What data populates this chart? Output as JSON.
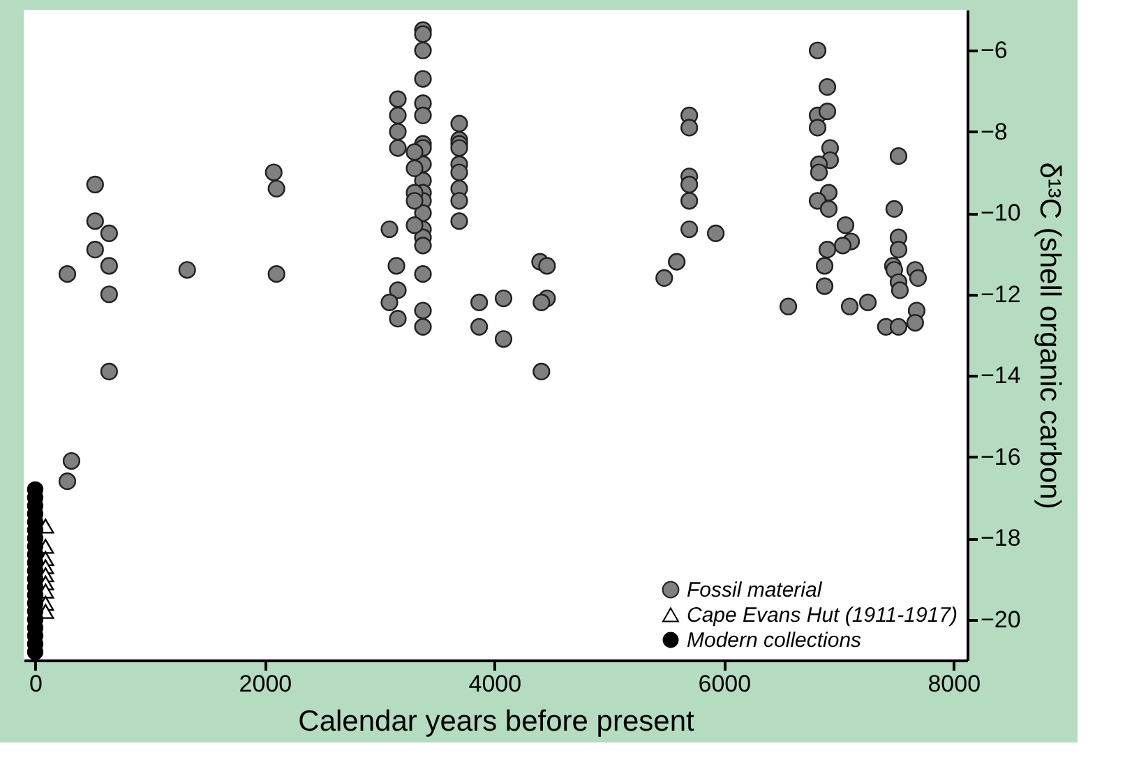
{
  "chart_data": {
    "type": "scatter",
    "xlabel": "Calendar years before present",
    "ylabel": "δ¹³C (shell organic carbon)",
    "xlim": [
      -100,
      8120
    ],
    "ylim": [
      -21,
      -5
    ],
    "xticks": [
      0,
      2000,
      4000,
      6000,
      8000
    ],
    "yticks": [
      -6,
      -8,
      -10,
      -12,
      -14,
      -16,
      -18,
      -20
    ],
    "grid": false,
    "legend": "bottom right",
    "series": [
      {
        "name": "Fossil material",
        "color": "#808080",
        "marker": "circle",
        "x": [
          280,
          522,
          522,
          644,
          522,
          644,
          644,
          644,
          1324,
          2078,
          2102,
          2102,
          3086,
          3159,
          3159,
          3159,
          3159,
          3147,
          3159,
          3086,
          3159,
          3378,
          3378,
          3378,
          3378,
          3378,
          3378,
          3378,
          3378,
          3378,
          3378,
          3378,
          3378,
          3378,
          3378,
          3378,
          3378,
          3378,
          3378,
          3378,
          3305,
          3305,
          3305,
          3305,
          3305,
          3694,
          3694,
          3694,
          3694,
          3694,
          3694,
          3694,
          3694,
          3694,
          3868,
          3868,
          4080,
          4080,
          4398,
          4459,
          4459,
          4410,
          4410,
          5480,
          5589,
          5698,
          5698,
          5698,
          5698,
          5698,
          5698,
          5929,
          6561,
          6816,
          6901,
          6816,
          6901,
          6816,
          6925,
          6925,
          6828,
          6828,
          6913,
          6816,
          6913,
          7059,
          7108,
          7035,
          6901,
          6877,
          6877,
          7096,
          7254,
          7521,
          7484,
          7521,
          7521,
          7472,
          7484,
          7521,
          7533,
          7666,
          7691,
          7411,
          7521,
          7679,
          7666,
          316,
          280
        ],
        "values": [
          -11.5,
          -9.3,
          -10.2,
          -10.5,
          -10.9,
          -11.3,
          -12.0,
          -13.9,
          -11.4,
          -9.0,
          -9.4,
          -11.5,
          -10.4,
          -7.2,
          -7.6,
          -8.0,
          -8.4,
          -11.3,
          -11.9,
          -12.2,
          -12.6,
          -5.5,
          -5.6,
          -6.0,
          -6.7,
          -7.3,
          -7.6,
          -8.3,
          -8.4,
          -8.8,
          -9.2,
          -9.5,
          -9.7,
          -10.0,
          -10.4,
          -10.6,
          -10.8,
          -11.5,
          -12.4,
          -12.8,
          -8.5,
          -8.9,
          -9.5,
          -9.7,
          -10.3,
          -7.8,
          -8.2,
          -8.3,
          -8.4,
          -8.8,
          -9.0,
          -9.4,
          -9.7,
          -10.2,
          -12.2,
          -12.8,
          -12.1,
          -13.1,
          -11.2,
          -11.3,
          -12.1,
          -12.2,
          -13.9,
          -11.6,
          -11.2,
          -7.6,
          -7.9,
          -9.1,
          -9.3,
          -9.7,
          -10.4,
          -10.5,
          -12.3,
          -6.0,
          -6.9,
          -7.6,
          -7.5,
          -7.9,
          -8.4,
          -8.7,
          -8.8,
          -9.0,
          -9.5,
          -9.7,
          -9.9,
          -10.3,
          -10.7,
          -10.8,
          -10.9,
          -11.3,
          -11.8,
          -12.3,
          -12.2,
          -8.6,
          -9.9,
          -10.6,
          -10.9,
          -11.3,
          -11.4,
          -11.7,
          -11.9,
          -11.4,
          -11.6,
          -12.8,
          -12.8,
          -12.4,
          -12.7,
          -16.1,
          -16.6
        ]
      },
      {
        "name": "Cape Evans Hut (1911-1917)",
        "color": "#000000",
        "marker": "triangle",
        "x": [
          90,
          90,
          90,
          90,
          90,
          90,
          90,
          90,
          90
        ],
        "values": [
          -17.7,
          -18.2,
          -18.5,
          -18.7,
          -18.9,
          -19.1,
          -19.3,
          -19.6,
          -19.8
        ]
      },
      {
        "name": "Modern collections",
        "color": "#000000",
        "marker": "circle-small",
        "x": [
          0,
          0,
          0,
          0,
          0,
          0,
          0,
          0,
          0,
          0,
          0,
          0,
          0,
          0,
          0,
          0,
          0,
          0,
          0,
          0,
          0
        ],
        "values": [
          -16.8,
          -17.0,
          -17.2,
          -17.4,
          -17.6,
          -17.8,
          -18.0,
          -18.2,
          -18.4,
          -18.6,
          -18.8,
          -19.0,
          -19.2,
          -19.4,
          -19.6,
          -19.8,
          -20.0,
          -20.2,
          -20.4,
          -20.6,
          -20.8
        ]
      }
    ]
  }
}
